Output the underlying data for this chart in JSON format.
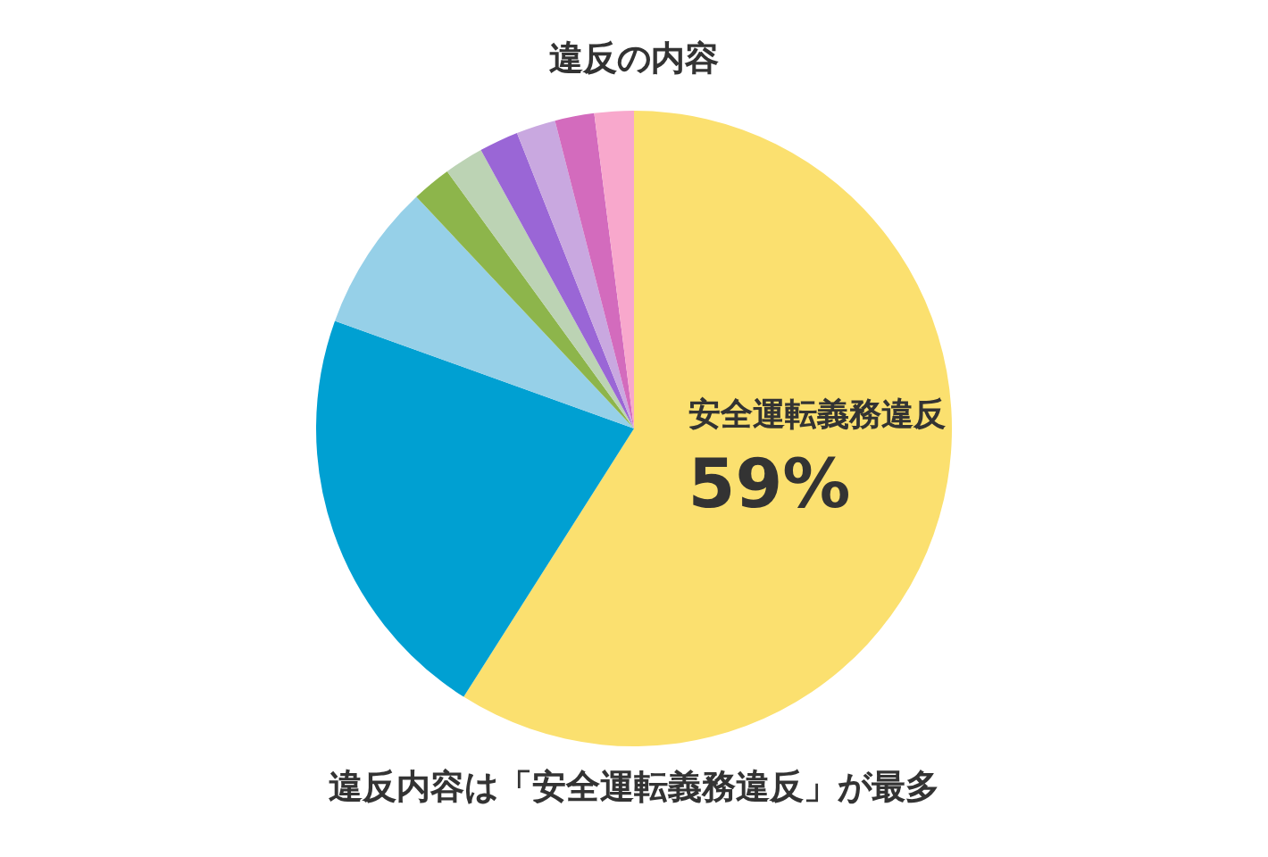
{
  "chart_data": {
    "type": "pie",
    "title": "違反の内容",
    "categories": [
      "安全運転義務違反",
      null,
      null,
      null,
      null,
      null,
      null,
      null,
      null
    ],
    "values": [
      59,
      21.5,
      7.5,
      2,
      2,
      2,
      2,
      2,
      2
    ],
    "colors": [
      "#fbe06f",
      "#00a0d2",
      "#96d0e8",
      "#8db54b",
      "#bcd3b4",
      "#9a66d6",
      "#c9a8e0",
      "#d36bbd",
      "#f8a8cc"
    ],
    "value_labels": [
      "59%",
      null,
      null,
      null,
      null,
      null,
      null,
      null,
      null
    ],
    "annotations": [
      "違反内容は「安全運転義務違反」が最多"
    ],
    "legend": false
  }
}
